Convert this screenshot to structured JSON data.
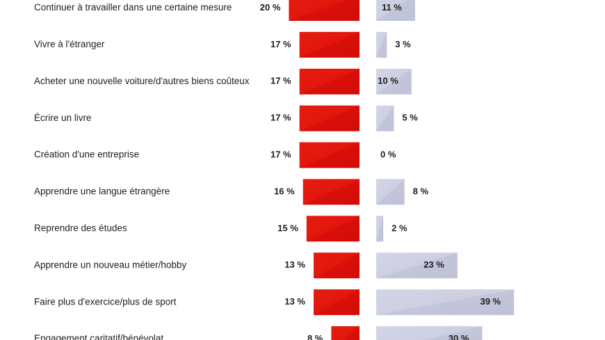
{
  "chart_data": {
    "type": "bar",
    "categories": [
      "Continuer à travailler dans une certaine mesure",
      "Vivre à l'étranger",
      "Acheter une nouvelle voiture/d'autres biens coûteux",
      "Écrire un livre",
      "Création d'une entreprise",
      "Apprendre une langue étrangère",
      "Reprendre des études",
      "Apprendre un nouveau métier/hobby",
      "Faire plus d'exercice/plus de sport",
      "Engagement caritatif/bénévolat"
    ],
    "series": [
      {
        "color": "#e3120b",
        "values": [
          20,
          17,
          17,
          17,
          17,
          16,
          15,
          13,
          13,
          8
        ],
        "labels": [
          "20 %",
          "17 %",
          "17 %",
          "17 %",
          "17 %",
          "16 %",
          "15 %",
          "13 %",
          "13 %",
          "8 %"
        ]
      },
      {
        "color": "#c9ccdf",
        "values": [
          11,
          3,
          10,
          5,
          0,
          8,
          2,
          23,
          39,
          30
        ],
        "labels": [
          "11 %",
          "3 %",
          "10 %",
          "5 %",
          "0 %",
          "8 %",
          "2 %",
          "23 %",
          "39 %",
          "30 %"
        ]
      }
    ]
  }
}
